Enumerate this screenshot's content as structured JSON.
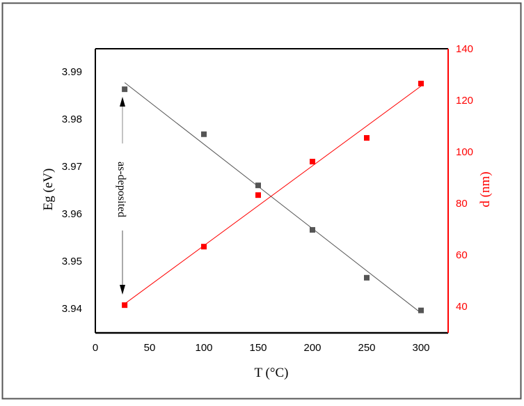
{
  "figure": {
    "border_color": "#555555",
    "eg_color": "#555555",
    "d_color": "#ff0000"
  },
  "chart_data": {
    "type": "scatter",
    "title": "",
    "xlabel": "T (°C)",
    "ylabel": "Eg (eV)",
    "y2label": "d (nm)",
    "xlim": [
      0,
      325
    ],
    "ylim": [
      3.933,
      3.9948
    ],
    "y2lim": [
      30,
      140
    ],
    "x_ticks": [
      0,
      50,
      100,
      150,
      200,
      250,
      300
    ],
    "x_tick_labels": [
      "0",
      "50",
      "100",
      "150",
      "200",
      "250",
      "300"
    ],
    "y_ticks": [
      3.94,
      3.95,
      3.96,
      3.97,
      3.98,
      3.99
    ],
    "y_tick_labels": [
      "3.94",
      "3.95",
      "3.96",
      "3.97",
      "3.98",
      "3.99"
    ],
    "y2_ticks": [
      40,
      60,
      80,
      100,
      120,
      140
    ],
    "y2_tick_labels": [
      "40",
      "60",
      "80",
      "100",
      "120",
      "140"
    ],
    "grid": false,
    "legend": null,
    "x": [
      27,
      100,
      150,
      200,
      250,
      300
    ],
    "series": [
      {
        "name": "Eg (eV)",
        "axis": "left",
        "color": "#555555",
        "marker": "square",
        "values": [
          3.9863,
          3.9768,
          3.966,
          3.9566,
          3.9465,
          3.9396
        ],
        "fit_line": {
          "x": [
            27,
            298
          ],
          "y": [
            3.9877,
            3.9394
          ]
        }
      },
      {
        "name": "d (nm)",
        "axis": "right",
        "color": "#ff0000",
        "marker": "square",
        "values": [
          40.5,
          63.2,
          83.2,
          96.2,
          105.4,
          126.5
        ],
        "fit_line": {
          "x": [
            27,
            300
          ],
          "y": [
            41.0,
            125.5
          ]
        }
      }
    ],
    "annotations": [
      {
        "text": "as-deposited",
        "at_x": 27,
        "arrows": [
          "up to Eg point",
          "down to d point"
        ]
      }
    ]
  }
}
